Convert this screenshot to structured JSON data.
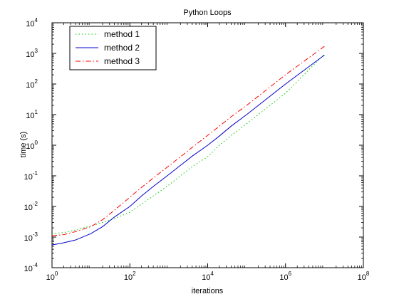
{
  "chart_data": {
    "type": "line",
    "title": "Python Loops",
    "xlabel": "iterations",
    "ylabel": "time (s)",
    "xscale": "log",
    "yscale": "log",
    "xlim": [
      1,
      100000000
    ],
    "ylim": [
      0.0001,
      10000
    ],
    "x_ticks": [
      {
        "value": 1,
        "base": "10",
        "exp": "0"
      },
      {
        "value": 100,
        "base": "10",
        "exp": "2"
      },
      {
        "value": 10000,
        "base": "10",
        "exp": "4"
      },
      {
        "value": 1000000,
        "base": "10",
        "exp": "6"
      },
      {
        "value": 100000000,
        "base": "10",
        "exp": "8"
      }
    ],
    "y_ticks": [
      {
        "value": 0.0001,
        "base": "10",
        "exp": "-4"
      },
      {
        "value": 0.001,
        "base": "10",
        "exp": "-3"
      },
      {
        "value": 0.01,
        "base": "10",
        "exp": "-2"
      },
      {
        "value": 0.1,
        "base": "10",
        "exp": "-1"
      },
      {
        "value": 1,
        "base": "10",
        "exp": "0"
      },
      {
        "value": 10,
        "base": "10",
        "exp": "1"
      },
      {
        "value": 100,
        "base": "10",
        "exp": "2"
      },
      {
        "value": 1000,
        "base": "10",
        "exp": "3"
      },
      {
        "value": 10000,
        "base": "10",
        "exp": "4"
      }
    ],
    "grid": false,
    "legend_position": "top-left",
    "series": [
      {
        "name": "method 1",
        "color": "#00cc00",
        "style": "dotted",
        "x": [
          1,
          2,
          4,
          10,
          20,
          40,
          100,
          200,
          400,
          1000,
          2000,
          4000,
          10000,
          20000,
          40000,
          100000,
          1000000,
          10000000
        ],
        "y": [
          0.0013,
          0.0014,
          0.0017,
          0.0023,
          0.003,
          0.004,
          0.0065,
          0.012,
          0.022,
          0.05,
          0.1,
          0.2,
          0.42,
          1.0,
          2.1,
          5,
          50,
          950
        ]
      },
      {
        "name": "method 2",
        "color": "#0000cc",
        "style": "solid",
        "x": [
          1,
          2,
          4,
          10,
          20,
          40,
          100,
          200,
          400,
          1000,
          2000,
          4000,
          10000,
          20000,
          40000,
          100000,
          1000000,
          10000000
        ],
        "y": [
          0.00055,
          0.00065,
          0.0008,
          0.0013,
          0.0022,
          0.0045,
          0.01,
          0.022,
          0.045,
          0.11,
          0.22,
          0.44,
          1.0,
          2.0,
          4.2,
          10,
          100,
          880
        ]
      },
      {
        "name": "method 3",
        "color": "#ff0000",
        "style": "dashdot",
        "x": [
          1,
          2,
          4,
          10,
          20,
          40,
          100,
          200,
          400,
          1000,
          2000,
          4000,
          10000,
          20000,
          40000,
          100000,
          1000000,
          10000000
        ],
        "y": [
          0.0011,
          0.0012,
          0.0015,
          0.0022,
          0.0037,
          0.0075,
          0.02,
          0.042,
          0.085,
          0.21,
          0.42,
          0.85,
          2.1,
          4.2,
          8.5,
          20,
          200,
          1700
        ]
      }
    ]
  }
}
